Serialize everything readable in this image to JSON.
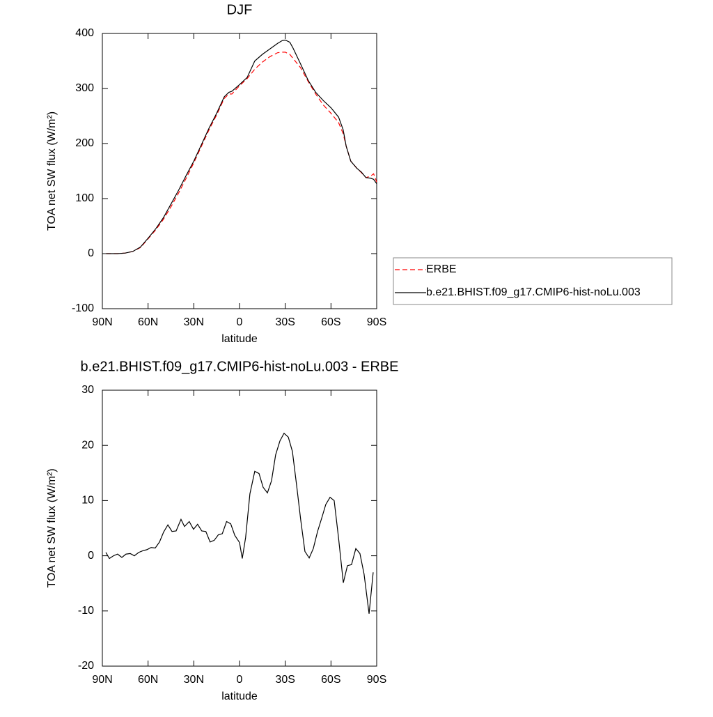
{
  "chart_data": [
    {
      "type": "line",
      "title": "DJF",
      "xlabel": "latitude",
      "ylabel": "TOA net SW flux (W/m²)",
      "xlim": [
        90,
        -90
      ],
      "xticks": [
        {
          "value": 90,
          "label": "90N"
        },
        {
          "value": 60,
          "label": "60N"
        },
        {
          "value": 30,
          "label": "30N"
        },
        0,
        {
          "value": -30,
          "label": "30S"
        },
        {
          "value": -60,
          "label": "60S"
        },
        {
          "value": -90,
          "label": "90S"
        }
      ],
      "ylim": [
        -100,
        400
      ],
      "yticks": [
        -100,
        0,
        100,
        200,
        300,
        400
      ],
      "legend": "right",
      "x": [
        87.5,
        85,
        80,
        75,
        70,
        65,
        60,
        55,
        50,
        45,
        40,
        35,
        30,
        25,
        20,
        15,
        10,
        7,
        5,
        0,
        -5,
        -10,
        -15,
        -20,
        -25,
        -28,
        -30,
        -33,
        -35,
        -40,
        -45,
        -50,
        -55,
        -60,
        -65,
        -68,
        -70,
        -73,
        -77,
        -80,
        -83,
        -86,
        -88,
        -90
      ],
      "series": [
        {
          "name": "ERBE",
          "color": "#ff0000",
          "dashed": true,
          "values": [
            0,
            0,
            0,
            1,
            4,
            11,
            27,
            43,
            62,
            85,
            110,
            137,
            165,
            195,
            225,
            252,
            282,
            290,
            290,
            305,
            318,
            335,
            348,
            358,
            365,
            366,
            366,
            362,
            355,
            338,
            313,
            290,
            270,
            255,
            238,
            218,
            195,
            168,
            155,
            147,
            138,
            141,
            145,
            130
          ]
        },
        {
          "name": "b.e21.BHIST.f09_g17.CMIP6-hist-noLu.003",
          "color": "#000000",
          "dashed": false,
          "values": [
            0,
            0,
            0,
            1,
            4,
            12,
            28,
            45,
            65,
            90,
            115,
            142,
            168,
            198,
            228,
            255,
            285,
            293,
            295,
            307,
            320,
            350,
            362,
            372,
            382,
            387,
            388,
            384,
            374,
            345,
            315,
            293,
            278,
            265,
            248,
            225,
            195,
            168,
            155,
            148,
            138,
            137,
            135,
            127
          ]
        }
      ]
    },
    {
      "type": "line",
      "title": "b.e21.BHIST.f09_g17.CMIP6-hist-noLu.003 - ERBE",
      "xlabel": "latitude",
      "ylabel": "TOA net SW flux (W/m²)",
      "xlim": [
        90,
        -90
      ],
      "xticks": [
        {
          "value": 90,
          "label": "90N"
        },
        {
          "value": 60,
          "label": "60N"
        },
        {
          "value": 30,
          "label": "30N"
        },
        0,
        {
          "value": -30,
          "label": "30S"
        },
        {
          "value": -60,
          "label": "60S"
        },
        {
          "value": -90,
          "label": "90S"
        }
      ],
      "ylim": [
        -20,
        30
      ],
      "yticks": [
        -20,
        -10,
        0,
        10,
        20,
        30
      ],
      "x": [
        87.7,
        85.4,
        82.7,
        80,
        77.2,
        74.5,
        71.7,
        69,
        66.2,
        63.5,
        60.8,
        58,
        55.3,
        52.5,
        49.8,
        47,
        44.3,
        41.6,
        38.4,
        36.1,
        33,
        30.2,
        27.5,
        24.8,
        22.1,
        19.3,
        16.6,
        13.9,
        11.3,
        8.5,
        5.8,
        3.1,
        0,
        -1.8,
        -4,
        -6.8,
        -10,
        -12.8,
        -15.5,
        -18.3,
        -21,
        -23.7,
        -26.5,
        -29.2,
        -32,
        -34.7,
        -37.4,
        -40.2,
        -42.9,
        -45.7,
        -48.4,
        -51.2,
        -53.9,
        -56.6,
        -59.4,
        -62.1,
        -64.9,
        -68.1,
        -70.8,
        -73.5,
        -76.3,
        -79,
        -81.7,
        -85,
        -87.7
      ],
      "color": "#000000",
      "values": [
        0.6,
        -0.5,
        0,
        0.3,
        -0.3,
        0.3,
        0.4,
        0,
        0.6,
        0.9,
        1.1,
        1.5,
        1.4,
        2.5,
        4.3,
        5.6,
        4.4,
        4.5,
        6.6,
        5.3,
        6.2,
        4.8,
        5.7,
        4.5,
        4.4,
        2.5,
        2.8,
        3.8,
        4,
        6.2,
        5.8,
        3.7,
        2.4,
        -0.5,
        3.3,
        11.2,
        15.3,
        14.9,
        12.4,
        11.4,
        13.6,
        18.3,
        20.8,
        22.2,
        21.5,
        18.9,
        12.9,
        6.4,
        0.8,
        -0.4,
        1.3,
        4.4,
        6.8,
        9.3,
        10.6,
        10,
        3.4,
        -4.9,
        -1.8,
        -1.6,
        1.3,
        0.4,
        -3.3,
        -10.5,
        -3
      ]
    }
  ]
}
